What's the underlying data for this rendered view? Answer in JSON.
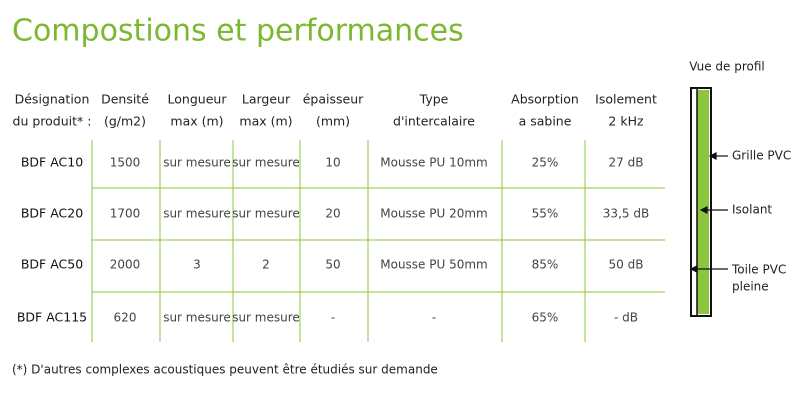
{
  "header": {
    "title": "Compostions et performances"
  },
  "table": {
    "headers": [
      [
        "Désignation",
        "du produit* :"
      ],
      [
        "Densité",
        "(g/m2)"
      ],
      [
        "Longueur",
        "max (m)"
      ],
      [
        "Largeur",
        "max (m)"
      ],
      [
        "épaisseur",
        "(mm)"
      ],
      [
        "Type",
        "d'intercalaire"
      ],
      [
        "Absorption",
        "a sabine"
      ],
      [
        "Isolement",
        "2 kHz"
      ]
    ],
    "rows": [
      [
        "BDF AC10",
        "1500",
        "sur mesure",
        "sur mesure",
        "10",
        "Mousse PU 10mm",
        "25%",
        "27 dB"
      ],
      [
        "BDF AC20",
        "1700",
        "sur mesure",
        "sur mesure",
        "20",
        "Mousse PU 20mm",
        "55%",
        "33,5 dB"
      ],
      [
        "BDF AC50",
        "2000",
        "3",
        "2",
        "50",
        "Mousse PU 50mm",
        "85%",
        "50 dB"
      ],
      [
        "BDF AC115",
        "620",
        "sur mesure",
        "sur mesure",
        "-",
        "-",
        "65%",
        "- dB"
      ]
    ]
  },
  "footnote": "(*) D'autres complexes acoustiques peuvent être étudiés sur demande",
  "profile": {
    "title": "Vue de profil",
    "labels": [
      "Grille PVC",
      "Isolant",
      [
        "Toile PVC",
        "pleine"
      ]
    ]
  }
}
